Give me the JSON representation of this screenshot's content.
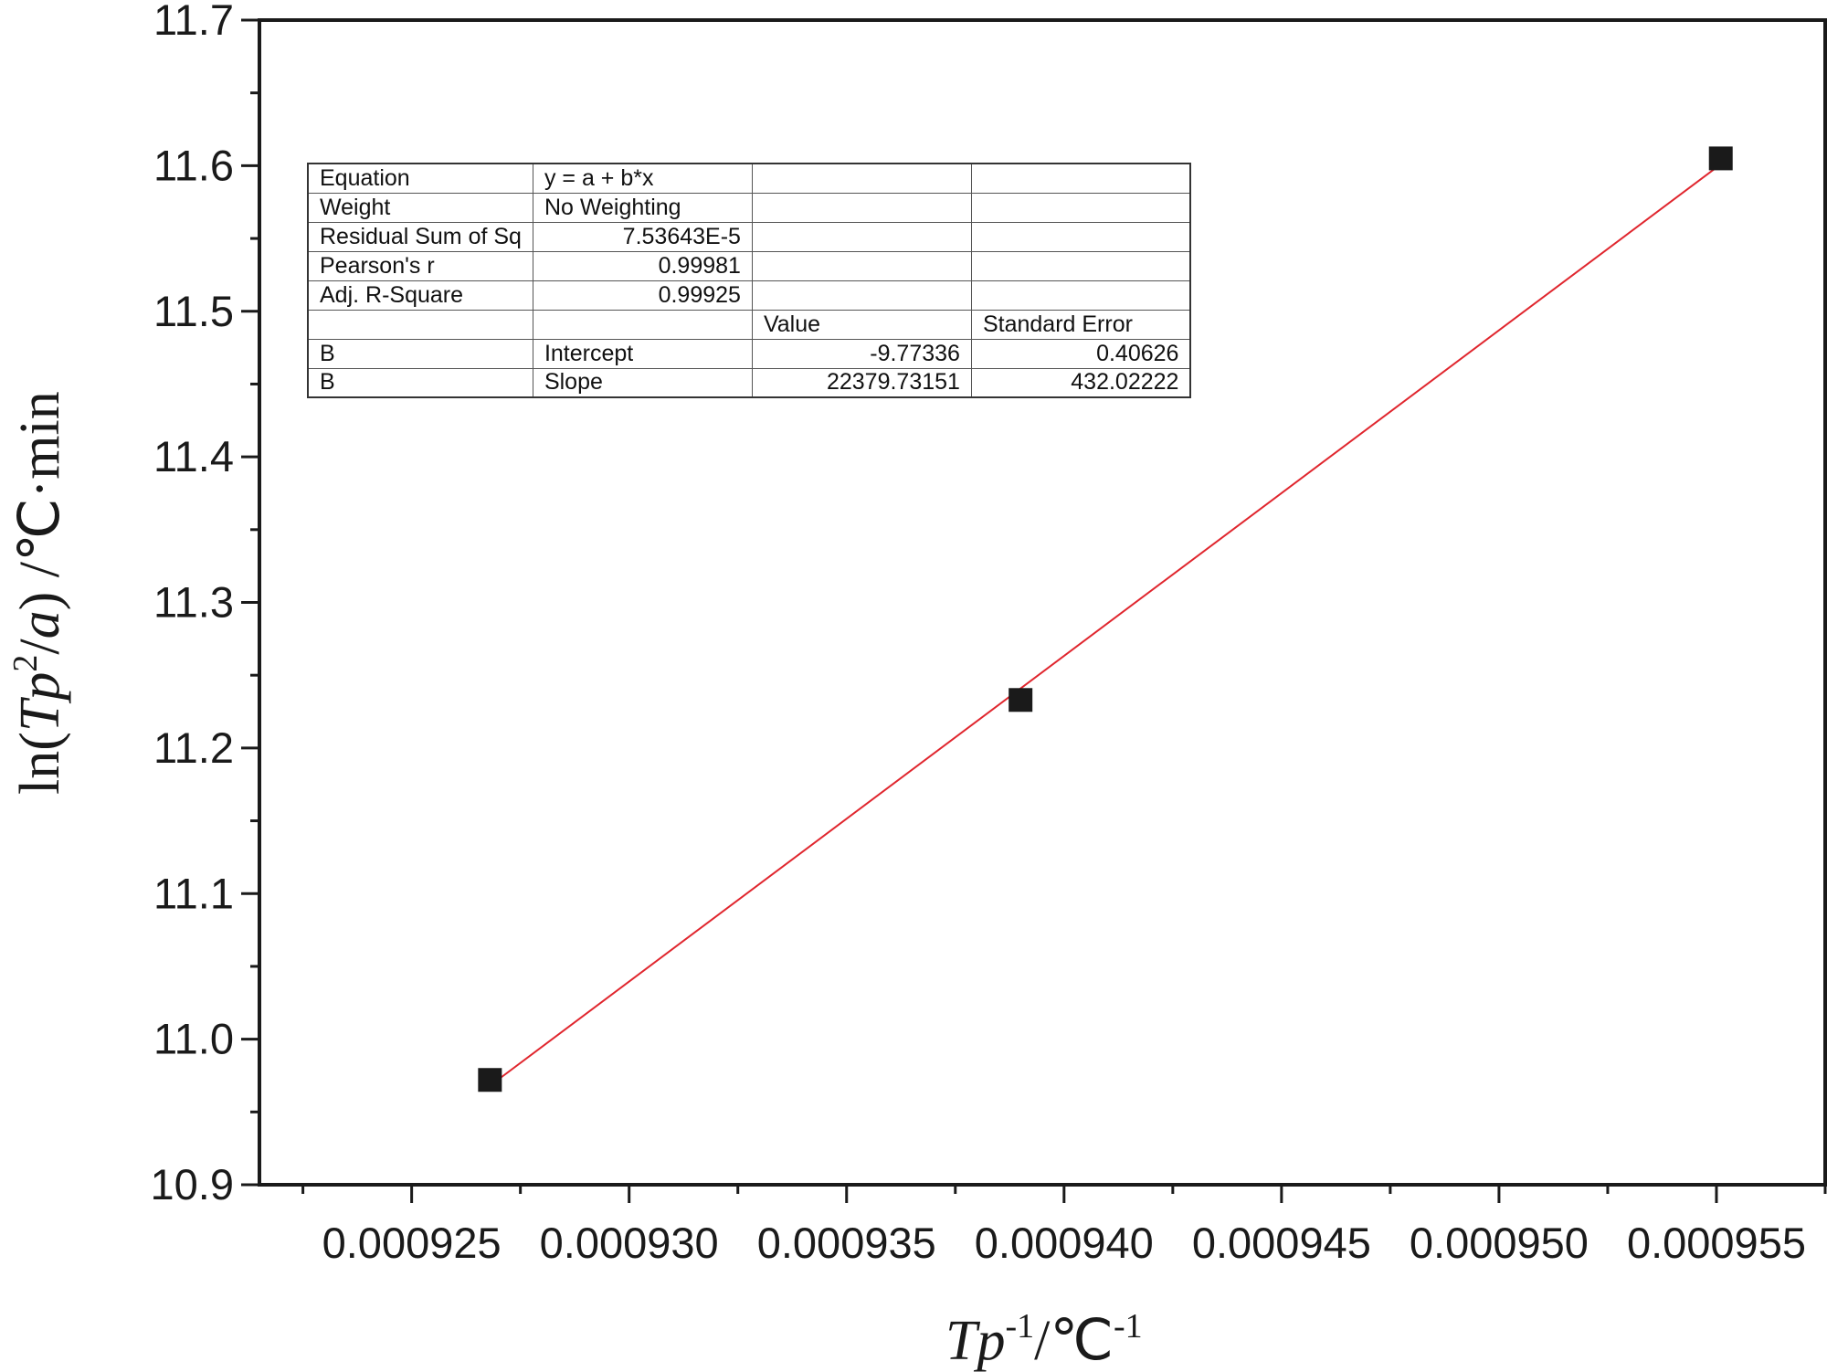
{
  "chart_data": {
    "type": "scatter",
    "x_axis": {
      "label_main": "Tp",
      "label_rest": "/℃",
      "label_sup1": "-1",
      "label_sup2": "-1",
      "range": [
        0.0009215,
        0.0009575
      ],
      "major_ticks": [
        0.000925,
        0.00093,
        0.000935,
        0.00094,
        0.000945,
        0.00095,
        0.000955
      ],
      "tick_labels": [
        "0.000925",
        "0.000930",
        "0.000935",
        "0.000940",
        "0.000945",
        "0.000950",
        "0.000955"
      ]
    },
    "y_axis": {
      "label_prefix": "ln(",
      "label_italic": "Tp",
      "label_sup": "2",
      "label_mid": "/",
      "label_italic2": "a",
      "label_suffix": ") /℃·min",
      "range": [
        10.9,
        11.7
      ],
      "major_ticks": [
        10.9,
        11.0,
        11.1,
        11.2,
        11.3,
        11.4,
        11.5,
        11.6,
        11.7
      ],
      "tick_labels": [
        "10.9",
        "11.0",
        "11.1",
        "11.2",
        "11.3",
        "11.4",
        "11.5",
        "11.6",
        "11.7"
      ]
    },
    "points": [
      {
        "x": 0.0009268,
        "y": 10.972
      },
      {
        "x": 0.000939,
        "y": 11.233
      },
      {
        "x": 0.0009551,
        "y": 11.605
      }
    ],
    "fit_line": {
      "x": [
        0.0009268,
        0.0009551
      ],
      "y": [
        10.968,
        11.601
      ]
    },
    "colors": {
      "marker": "#1a1a1a",
      "fit_line": "#e0262e",
      "axis": "#1a1a1a"
    },
    "fit_table": [
      [
        "Equation",
        "y = a + b*x",
        "",
        ""
      ],
      [
        "Weight",
        "No Weighting",
        "",
        ""
      ],
      [
        "Residual Sum of Sq",
        "7.53643E-5",
        "",
        ""
      ],
      [
        "Pearson's r",
        "0.99981",
        "",
        ""
      ],
      [
        "Adj. R-Square",
        "0.99925",
        "",
        ""
      ],
      [
        "",
        "",
        "Value",
        "Standard Error"
      ],
      [
        "B",
        "Intercept",
        "-9.77336",
        "0.40626"
      ],
      [
        "B",
        "Slope",
        "22379.73151",
        "432.02222"
      ]
    ]
  }
}
